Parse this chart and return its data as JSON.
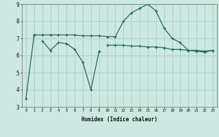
{
  "xlabel": "Humidex (Indice chaleur)",
  "background_color": "#cce8e0",
  "grid_color": "#aaccc4",
  "line_color": "#1a6b5a",
  "x": [
    0,
    1,
    2,
    3,
    4,
    5,
    6,
    7,
    8,
    9,
    10,
    11,
    12,
    13,
    14,
    15,
    16,
    17,
    18,
    19,
    20,
    21,
    22,
    23
  ],
  "line1": [
    3.5,
    7.2,
    null,
    null,
    null,
    null,
    null,
    null,
    null,
    null,
    null,
    null,
    null,
    null,
    null,
    null,
    null,
    null,
    null,
    null,
    null,
    null,
    null,
    null
  ],
  "line2": [
    null,
    null,
    6.85,
    6.3,
    6.75,
    6.7,
    6.35,
    5.6,
    4.0,
    6.25,
    null,
    null,
    null,
    null,
    null,
    null,
    null,
    null,
    null,
    null,
    null,
    null,
    null,
    null
  ],
  "line3": [
    null,
    7.2,
    7.2,
    7.2,
    7.2,
    7.2,
    7.2,
    7.15,
    7.15,
    7.15,
    7.1,
    7.1,
    8.0,
    8.5,
    8.75,
    9.0,
    8.6,
    7.6,
    7.0,
    6.75,
    6.3,
    6.3,
    6.25,
    6.3
  ],
  "line4": [
    null,
    null,
    null,
    null,
    null,
    null,
    null,
    null,
    null,
    null,
    6.6,
    6.6,
    6.6,
    6.55,
    6.55,
    6.5,
    6.5,
    6.45,
    6.35,
    6.35,
    6.3,
    6.25,
    6.2,
    6.3
  ],
  "ylim": [
    3,
    9
  ],
  "xlim": [
    -0.5,
    23.5
  ]
}
